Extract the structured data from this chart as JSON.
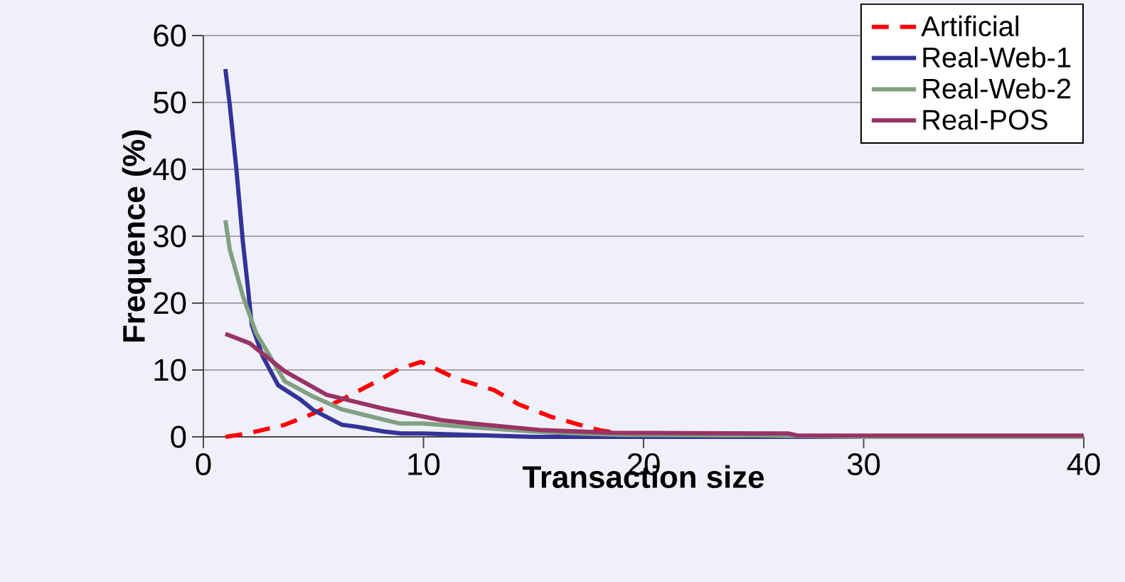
{
  "chart_data": {
    "type": "line",
    "xlabel": "Transaction size",
    "ylabel": "Frequence (%)",
    "xlim": [
      0,
      40
    ],
    "ylim": [
      0,
      60
    ],
    "xticks": [
      0,
      10,
      20,
      30,
      40
    ],
    "yticks": [
      0,
      10,
      20,
      30,
      40,
      50,
      60
    ],
    "grid": "y",
    "legend": "top right",
    "marker": "none",
    "series": [
      {
        "name": "Artificial",
        "color": "#ff0000",
        "line_style": "dashed",
        "x": [
          1,
          2,
          3.7,
          5,
          6.3,
          8,
          8.9,
          9.9,
          11.5,
          13.2,
          14.3,
          15.8,
          17.1,
          18,
          19,
          20
        ],
        "values": [
          0,
          0.5,
          1.8,
          3.5,
          5.6,
          8.5,
          10.2,
          11.2,
          8.7,
          7,
          4.9,
          3,
          1.8,
          1,
          0.5,
          0
        ]
      },
      {
        "name": "Real-Web-1",
        "color": "#333399",
        "line_style": "solid",
        "x": [
          1,
          1.2,
          1.5,
          1.8,
          2,
          2.2,
          2.7,
          3.4,
          4.4,
          5,
          6.3,
          7,
          8.2,
          9,
          10,
          12,
          15,
          20,
          30,
          40
        ],
        "values": [
          55,
          49.6,
          40,
          29,
          23,
          16.7,
          12,
          7.7,
          5.6,
          4,
          1.8,
          1.5,
          0.8,
          0.5,
          0.5,
          0.3,
          0,
          0,
          0,
          0
        ]
      },
      {
        "name": "Real-Web-2",
        "color": "#80a080",
        "line_style": "solid",
        "x": [
          1,
          1.2,
          1.8,
          2.4,
          3.7,
          5,
          6.3,
          8.9,
          10,
          12,
          15,
          17,
          19,
          25,
          30,
          40
        ],
        "values": [
          32.4,
          28,
          21,
          15.5,
          8.3,
          6,
          4.1,
          2,
          2,
          1.5,
          0.8,
          0.5,
          0.3,
          0.2,
          0,
          0
        ]
      },
      {
        "name": "Real-POS",
        "color": "#993366",
        "line_style": "solid",
        "x": [
          1,
          2.1,
          3.7,
          5.6,
          8.2,
          10.8,
          12.2,
          15.4,
          18.6,
          26.6,
          27,
          40
        ],
        "values": [
          15.4,
          14,
          9.8,
          6.3,
          4.2,
          2.5,
          2,
          1,
          0.6,
          0.5,
          0.2,
          0.2
        ]
      }
    ]
  }
}
